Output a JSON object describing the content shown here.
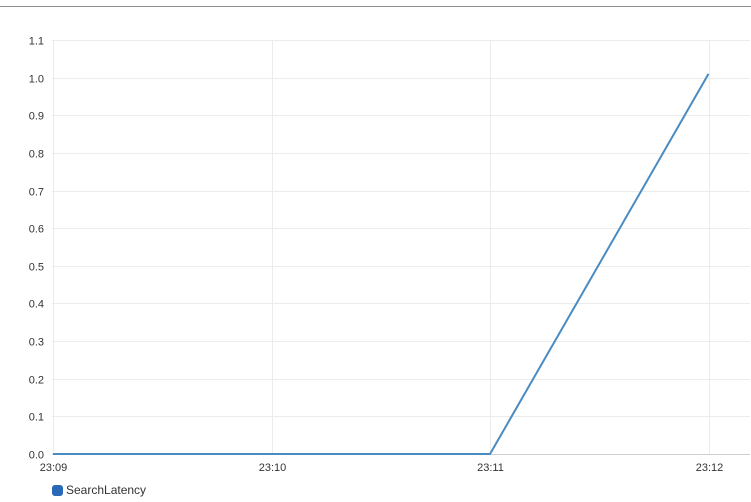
{
  "chart_data": {
    "type": "line",
    "x": [
      "23:09",
      "23:10",
      "23:11",
      "23:12"
    ],
    "series": [
      {
        "name": "SearchLatency",
        "values": [
          0.0,
          0.0,
          0.0,
          1.01
        ],
        "color": "#4a8bc2"
      }
    ],
    "ylim": [
      0.0,
      1.1
    ],
    "yticks": [
      "0.0",
      "0.1",
      "0.2",
      "0.3",
      "0.4",
      "0.5",
      "0.6",
      "0.7",
      "0.8",
      "0.9",
      "1.0",
      "1.1"
    ],
    "xticks": [
      "23:09",
      "23:10",
      "23:11",
      "23:12"
    ],
    "grid": true,
    "legend_position": "bottom-left",
    "legend_swatch_color": "#2a68b8"
  }
}
